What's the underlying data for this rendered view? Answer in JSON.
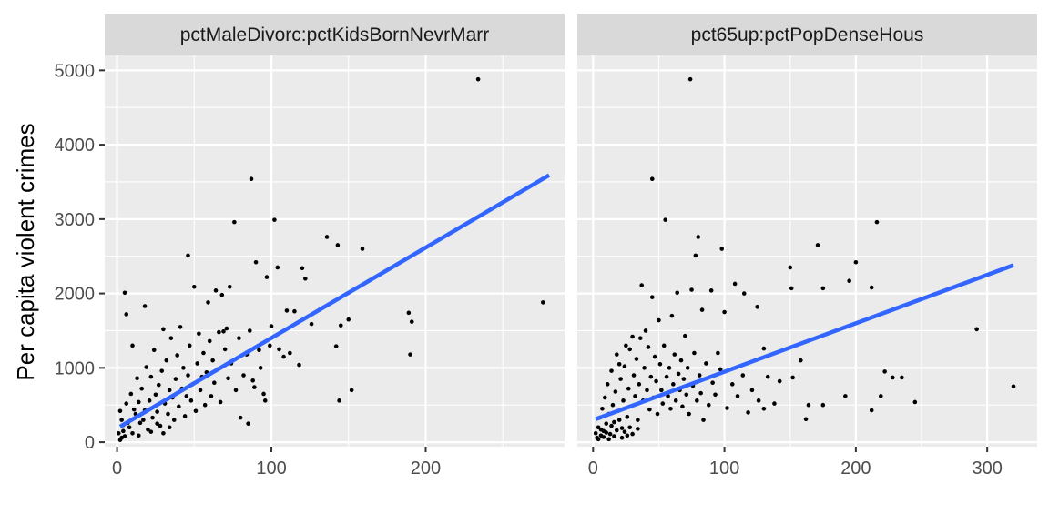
{
  "chart_data": {
    "type": "scatter",
    "ylabel": "Per capita violent crimes",
    "xlabel": "",
    "ylim": [
      -60,
      5200
    ],
    "yticks": [
      0,
      1000,
      2000,
      3000,
      4000,
      5000
    ],
    "grid": true,
    "colors": {
      "point": "#000000",
      "fit_line": "#3366FF",
      "panel": "#EBEBEB",
      "strip": "#D9D9D9"
    },
    "panels": [
      {
        "title": "pctMaleDivorc:pctKidsBornNevrMarr",
        "xlim": [
          -8,
          290
        ],
        "xticks": [
          0,
          100,
          200
        ],
        "fit": {
          "x": [
            2,
            280
          ],
          "y": [
            210,
            3590
          ]
        },
        "points": [
          [
            234,
            4880
          ],
          [
            87,
            3540
          ],
          [
            76,
            2960
          ],
          [
            102,
            2990
          ],
          [
            276,
            1880
          ],
          [
            46,
            2510
          ],
          [
            136,
            2760
          ],
          [
            143,
            2650
          ],
          [
            159,
            2600
          ],
          [
            90,
            2420
          ],
          [
            104,
            2350
          ],
          [
            97,
            2220
          ],
          [
            5,
            2010
          ],
          [
            120,
            2340
          ],
          [
            122,
            2200
          ],
          [
            189,
            1740
          ],
          [
            191,
            1620
          ],
          [
            190,
            1180
          ],
          [
            145,
            1570
          ],
          [
            142,
            1290
          ],
          [
            150,
            1650
          ],
          [
            126,
            1590
          ],
          [
            115,
            1760
          ],
          [
            110,
            1770
          ],
          [
            144,
            560
          ],
          [
            152,
            700
          ],
          [
            118,
            1040
          ],
          [
            99,
            1300
          ],
          [
            105,
            1250
          ],
          [
            93,
            1000
          ],
          [
            85,
            250
          ],
          [
            80,
            330
          ],
          [
            95,
            650
          ],
          [
            88,
            830
          ],
          [
            71,
            1530
          ],
          [
            68,
            1980
          ],
          [
            64,
            2040
          ],
          [
            73,
            2090
          ],
          [
            69,
            1490
          ],
          [
            50,
            2090
          ],
          [
            59,
            1880
          ],
          [
            41,
            1550
          ],
          [
            30,
            1520
          ],
          [
            10,
            1300
          ],
          [
            6,
            1720
          ],
          [
            18,
            1830
          ],
          [
            2,
            420
          ],
          [
            3,
            300
          ],
          [
            4,
            150
          ],
          [
            5,
            80
          ],
          [
            6,
            520
          ],
          [
            8,
            200
          ],
          [
            9,
            650
          ],
          [
            10,
            120
          ],
          [
            12,
            380
          ],
          [
            13,
            860
          ],
          [
            14,
            540
          ],
          [
            15,
            260
          ],
          [
            16,
            720
          ],
          [
            18,
            430
          ],
          [
            19,
            1010
          ],
          [
            20,
            170
          ],
          [
            21,
            560
          ],
          [
            22,
            880
          ],
          [
            23,
            330
          ],
          [
            24,
            1240
          ],
          [
            25,
            640
          ],
          [
            26,
            410
          ],
          [
            27,
            770
          ],
          [
            28,
            220
          ],
          [
            29,
            960
          ],
          [
            31,
            520
          ],
          [
            32,
            1100
          ],
          [
            33,
            380
          ],
          [
            34,
            700
          ],
          [
            35,
            1400
          ],
          [
            36,
            600
          ],
          [
            37,
            300
          ],
          [
            38,
            850
          ],
          [
            39,
            1170
          ],
          [
            40,
            480
          ],
          [
            42,
            720
          ],
          [
            43,
            1000
          ],
          [
            44,
            350
          ],
          [
            45,
            620
          ],
          [
            46,
            900
          ],
          [
            47,
            1300
          ],
          [
            48,
            560
          ],
          [
            49,
            780
          ],
          [
            51,
            420
          ],
          [
            52,
            1060
          ],
          [
            53,
            1460
          ],
          [
            54,
            700
          ],
          [
            55,
            880
          ],
          [
            56,
            1200
          ],
          [
            57,
            500
          ],
          [
            58,
            940
          ],
          [
            60,
            1360
          ],
          [
            61,
            620
          ],
          [
            62,
            1100
          ],
          [
            63,
            800
          ],
          [
            65,
            980
          ],
          [
            66,
            1480
          ],
          [
            67,
            540
          ],
          [
            70,
            1250
          ],
          [
            72,
            860
          ],
          [
            74,
            1060
          ],
          [
            77,
            700
          ],
          [
            79,
            1400
          ],
          [
            82,
            900
          ],
          [
            84,
            1180
          ],
          [
            86,
            1500
          ],
          [
            89,
            740
          ],
          [
            92,
            1240
          ],
          [
            96,
            560
          ],
          [
            100,
            1560
          ],
          [
            108,
            1150
          ],
          [
            112,
            1200
          ],
          [
            7,
            260
          ],
          [
            11,
            440
          ],
          [
            14,
            90
          ],
          [
            17,
            300
          ],
          [
            22,
            140
          ],
          [
            26,
            250
          ],
          [
            30,
            120
          ],
          [
            34,
            200
          ],
          [
            3,
            60
          ],
          [
            1,
            120
          ],
          [
            2,
            30
          ],
          [
            4,
            230
          ]
        ]
      },
      {
        "title": "pct65up:pctPopDenseHous",
        "xlim": [
          -12,
          338
        ],
        "xticks": [
          0,
          100,
          200,
          300
        ],
        "fit": {
          "x": [
            2,
            320
          ],
          "y": [
            310,
            2380
          ]
        },
        "points": [
          [
            74,
            4880
          ],
          [
            45,
            3540
          ],
          [
            216,
            2960
          ],
          [
            55,
            2990
          ],
          [
            80,
            2760
          ],
          [
            78,
            2510
          ],
          [
            171,
            2650
          ],
          [
            200,
            2420
          ],
          [
            98,
            2600
          ],
          [
            108,
            2130
          ],
          [
            150,
            2350
          ],
          [
            195,
            2170
          ],
          [
            212,
            2080
          ],
          [
            175,
            2070
          ],
          [
            151,
            2070
          ],
          [
            125,
            1820
          ],
          [
            115,
            2000
          ],
          [
            90,
            2040
          ],
          [
            75,
            2050
          ],
          [
            64,
            2010
          ],
          [
            37,
            2110
          ],
          [
            45,
            1950
          ],
          [
            60,
            1700
          ],
          [
            83,
            1780
          ],
          [
            100,
            1750
          ],
          [
            292,
            1520
          ],
          [
            320,
            750
          ],
          [
            245,
            540
          ],
          [
            235,
            870
          ],
          [
            222,
            950
          ],
          [
            228,
            870
          ],
          [
            219,
            620
          ],
          [
            212,
            430
          ],
          [
            192,
            620
          ],
          [
            175,
            500
          ],
          [
            164,
            500
          ],
          [
            162,
            310
          ],
          [
            130,
            450
          ],
          [
            138,
            520
          ],
          [
            142,
            820
          ],
          [
            152,
            870
          ],
          [
            158,
            1100
          ],
          [
            130,
            1260
          ],
          [
            95,
            1200
          ],
          [
            70,
            1430
          ],
          [
            50,
            1640
          ],
          [
            40,
            1500
          ],
          [
            30,
            1420
          ],
          [
            25,
            1300
          ],
          [
            20,
            1050
          ],
          [
            2,
            120
          ],
          [
            3,
            60
          ],
          [
            4,
            200
          ],
          [
            5,
            330
          ],
          [
            6,
            90
          ],
          [
            7,
            450
          ],
          [
            8,
            150
          ],
          [
            9,
            600
          ],
          [
            10,
            250
          ],
          [
            11,
            780
          ],
          [
            12,
            380
          ],
          [
            13,
            110
          ],
          [
            14,
            960
          ],
          [
            15,
            500
          ],
          [
            16,
            270
          ],
          [
            17,
            680
          ],
          [
            18,
            1180
          ],
          [
            19,
            420
          ],
          [
            21,
            850
          ],
          [
            22,
            190
          ],
          [
            23,
            560
          ],
          [
            24,
            1020
          ],
          [
            26,
            340
          ],
          [
            27,
            720
          ],
          [
            28,
            1250
          ],
          [
            29,
            480
          ],
          [
            31,
            900
          ],
          [
            32,
            620
          ],
          [
            33,
            1120
          ],
          [
            34,
            300
          ],
          [
            35,
            780
          ],
          [
            36,
            1400
          ],
          [
            38,
            560
          ],
          [
            39,
            1000
          ],
          [
            41,
            700
          ],
          [
            42,
            1280
          ],
          [
            43,
            440
          ],
          [
            44,
            880
          ],
          [
            46,
            600
          ],
          [
            47,
            1150
          ],
          [
            48,
            820
          ],
          [
            49,
            380
          ],
          [
            51,
            1050
          ],
          [
            52,
            700
          ],
          [
            53,
            520
          ],
          [
            54,
            1300
          ],
          [
            56,
            880
          ],
          [
            57,
            620
          ],
          [
            58,
            1000
          ],
          [
            59,
            450
          ],
          [
            61,
            780
          ],
          [
            62,
            1180
          ],
          [
            63,
            560
          ],
          [
            65,
            920
          ],
          [
            66,
            700
          ],
          [
            67,
            1100
          ],
          [
            68,
            480
          ],
          [
            69,
            850
          ],
          [
            71,
            640
          ],
          [
            72,
            1000
          ],
          [
            73,
            380
          ],
          [
            76,
            760
          ],
          [
            77,
            1200
          ],
          [
            79,
            560
          ],
          [
            81,
            900
          ],
          [
            82,
            660
          ],
          [
            84,
            300
          ],
          [
            86,
            1060
          ],
          [
            88,
            500
          ],
          [
            91,
            800
          ],
          [
            93,
            640
          ],
          [
            97,
            980
          ],
          [
            102,
            460
          ],
          [
            106,
            780
          ],
          [
            110,
            620
          ],
          [
            114,
            900
          ],
          [
            118,
            400
          ],
          [
            121,
            700
          ],
          [
            126,
            560
          ],
          [
            133,
            880
          ],
          [
            4,
            40
          ],
          [
            6,
            170
          ],
          [
            8,
            70
          ],
          [
            10,
            130
          ],
          [
            12,
            40
          ],
          [
            14,
            220
          ],
          [
            16,
            80
          ],
          [
            18,
            160
          ],
          [
            20,
            300
          ],
          [
            22,
            60
          ],
          [
            24,
            140
          ],
          [
            26,
            90
          ],
          [
            28,
            200
          ],
          [
            30,
            110
          ],
          [
            34,
            180
          ]
        ]
      }
    ]
  }
}
